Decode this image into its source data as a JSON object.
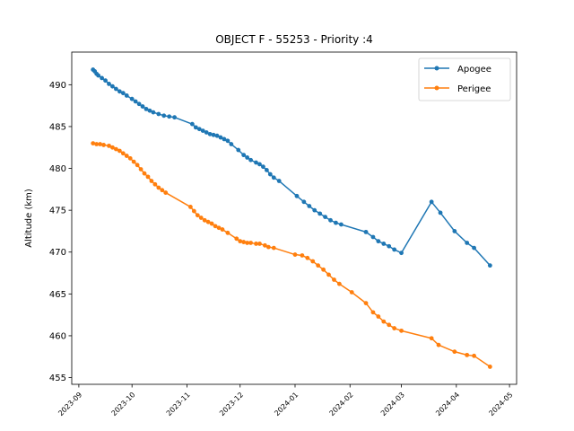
{
  "chart_data": {
    "type": "line",
    "title": "OBJECT F - 55253 - Priority :4",
    "xlabel": "",
    "ylabel": "Altitude (km)",
    "x_range": [
      "2023-08-28",
      "2024-05-05"
    ],
    "ylim": [
      454.2,
      493.9
    ],
    "x_ticks": [
      "2023-09",
      "2023-10",
      "2023-11",
      "2023-12",
      "2024-01",
      "2024-02",
      "2024-03",
      "2024-04",
      "2024-05"
    ],
    "y_ticks": [
      455,
      460,
      465,
      470,
      475,
      480,
      485,
      490
    ],
    "grid": false,
    "legend_position": "top-right",
    "series": [
      {
        "name": "Apogee",
        "color": "#1f77b4",
        "points": [
          [
            "2023-09-09",
            491.8
          ],
          [
            "2023-09-10",
            491.6
          ],
          [
            "2023-09-11",
            491.3
          ],
          [
            "2023-09-12",
            491.1
          ],
          [
            "2023-09-14",
            490.8
          ],
          [
            "2023-09-16",
            490.5
          ],
          [
            "2023-09-18",
            490.1
          ],
          [
            "2023-09-20",
            489.8
          ],
          [
            "2023-09-22",
            489.5
          ],
          [
            "2023-09-24",
            489.2
          ],
          [
            "2023-09-26",
            489.0
          ],
          [
            "2023-09-28",
            488.7
          ],
          [
            "2023-10-01",
            488.3
          ],
          [
            "2023-10-03",
            488.0
          ],
          [
            "2023-10-05",
            487.7
          ],
          [
            "2023-10-07",
            487.4
          ],
          [
            "2023-10-09",
            487.1
          ],
          [
            "2023-10-11",
            486.9
          ],
          [
            "2023-10-13",
            486.7
          ],
          [
            "2023-10-16",
            486.5
          ],
          [
            "2023-10-19",
            486.3
          ],
          [
            "2023-10-22",
            486.2
          ],
          [
            "2023-10-25",
            486.1
          ],
          [
            "2023-11-04",
            485.3
          ],
          [
            "2023-11-06",
            484.9
          ],
          [
            "2023-11-08",
            484.7
          ],
          [
            "2023-11-10",
            484.5
          ],
          [
            "2023-11-12",
            484.3
          ],
          [
            "2023-11-14",
            484.1
          ],
          [
            "2023-11-16",
            484.0
          ],
          [
            "2023-11-18",
            483.9
          ],
          [
            "2023-11-20",
            483.7
          ],
          [
            "2023-11-22",
            483.5
          ],
          [
            "2023-11-24",
            483.3
          ],
          [
            "2023-11-26",
            482.9
          ],
          [
            "2023-11-30",
            482.2
          ],
          [
            "2023-12-03",
            481.6
          ],
          [
            "2023-12-05",
            481.3
          ],
          [
            "2023-12-07",
            481.0
          ],
          [
            "2023-12-10",
            480.7
          ],
          [
            "2023-12-12",
            480.5
          ],
          [
            "2023-12-14",
            480.2
          ],
          [
            "2023-12-16",
            479.8
          ],
          [
            "2023-12-18",
            479.3
          ],
          [
            "2023-12-20",
            478.9
          ],
          [
            "2023-12-23",
            478.5
          ],
          [
            "2024-01-02",
            476.7
          ],
          [
            "2024-01-06",
            476.0
          ],
          [
            "2024-01-09",
            475.5
          ],
          [
            "2024-01-12",
            475.0
          ],
          [
            "2024-01-15",
            474.6
          ],
          [
            "2024-01-18",
            474.2
          ],
          [
            "2024-01-21",
            473.8
          ],
          [
            "2024-01-24",
            473.5
          ],
          [
            "2024-01-27",
            473.3
          ],
          [
            "2024-02-10",
            472.4
          ],
          [
            "2024-02-14",
            471.8
          ],
          [
            "2024-02-17",
            471.3
          ],
          [
            "2024-02-20",
            471.0
          ],
          [
            "2024-02-23",
            470.7
          ],
          [
            "2024-02-26",
            470.3
          ],
          [
            "2024-03-01",
            469.9
          ],
          [
            "2024-03-18",
            476.0
          ],
          [
            "2024-03-23",
            474.7
          ],
          [
            "2024-03-31",
            472.5
          ],
          [
            "2024-04-07",
            471.1
          ],
          [
            "2024-04-11",
            470.5
          ],
          [
            "2024-04-20",
            468.4
          ]
        ]
      },
      {
        "name": "Perigee",
        "color": "#ff7f0e",
        "points": [
          [
            "2023-09-09",
            483.0
          ],
          [
            "2023-09-11",
            482.9
          ],
          [
            "2023-09-13",
            482.9
          ],
          [
            "2023-09-15",
            482.8
          ],
          [
            "2023-09-18",
            482.7
          ],
          [
            "2023-09-20",
            482.5
          ],
          [
            "2023-09-22",
            482.3
          ],
          [
            "2023-09-24",
            482.1
          ],
          [
            "2023-09-26",
            481.8
          ],
          [
            "2023-09-28",
            481.5
          ],
          [
            "2023-09-30",
            481.2
          ],
          [
            "2023-10-02",
            480.8
          ],
          [
            "2023-10-04",
            480.4
          ],
          [
            "2023-10-06",
            479.9
          ],
          [
            "2023-10-08",
            479.4
          ],
          [
            "2023-10-10",
            479.0
          ],
          [
            "2023-10-12",
            478.5
          ],
          [
            "2023-10-14",
            478.1
          ],
          [
            "2023-10-16",
            477.7
          ],
          [
            "2023-10-18",
            477.4
          ],
          [
            "2023-10-20",
            477.1
          ],
          [
            "2023-11-03",
            475.4
          ],
          [
            "2023-11-05",
            474.9
          ],
          [
            "2023-11-07",
            474.4
          ],
          [
            "2023-11-09",
            474.1
          ],
          [
            "2023-11-11",
            473.8
          ],
          [
            "2023-11-13",
            473.6
          ],
          [
            "2023-11-15",
            473.4
          ],
          [
            "2023-11-17",
            473.1
          ],
          [
            "2023-11-19",
            472.9
          ],
          [
            "2023-11-21",
            472.7
          ],
          [
            "2023-11-24",
            472.3
          ],
          [
            "2023-11-29",
            471.6
          ],
          [
            "2023-12-01",
            471.3
          ],
          [
            "2023-12-03",
            471.2
          ],
          [
            "2023-12-05",
            471.1
          ],
          [
            "2023-12-07",
            471.1
          ],
          [
            "2023-12-10",
            471.0
          ],
          [
            "2023-12-12",
            471.0
          ],
          [
            "2023-12-15",
            470.8
          ],
          [
            "2023-12-17",
            470.6
          ],
          [
            "2023-12-20",
            470.5
          ],
          [
            "2024-01-01",
            469.7
          ],
          [
            "2024-01-05",
            469.6
          ],
          [
            "2024-01-08",
            469.3
          ],
          [
            "2024-01-11",
            468.9
          ],
          [
            "2024-01-14",
            468.4
          ],
          [
            "2024-01-17",
            467.9
          ],
          [
            "2024-01-20",
            467.3
          ],
          [
            "2024-01-23",
            466.7
          ],
          [
            "2024-01-26",
            466.2
          ],
          [
            "2024-02-02",
            465.2
          ],
          [
            "2024-02-10",
            463.9
          ],
          [
            "2024-02-14",
            462.8
          ],
          [
            "2024-02-17",
            462.3
          ],
          [
            "2024-02-20",
            461.7
          ],
          [
            "2024-02-23",
            461.3
          ],
          [
            "2024-02-26",
            460.9
          ],
          [
            "2024-03-01",
            460.6
          ],
          [
            "2024-03-18",
            459.7
          ],
          [
            "2024-03-22",
            458.9
          ],
          [
            "2024-03-31",
            458.1
          ],
          [
            "2024-04-07",
            457.7
          ],
          [
            "2024-04-11",
            457.6
          ],
          [
            "2024-04-20",
            456.3
          ]
        ]
      }
    ]
  }
}
